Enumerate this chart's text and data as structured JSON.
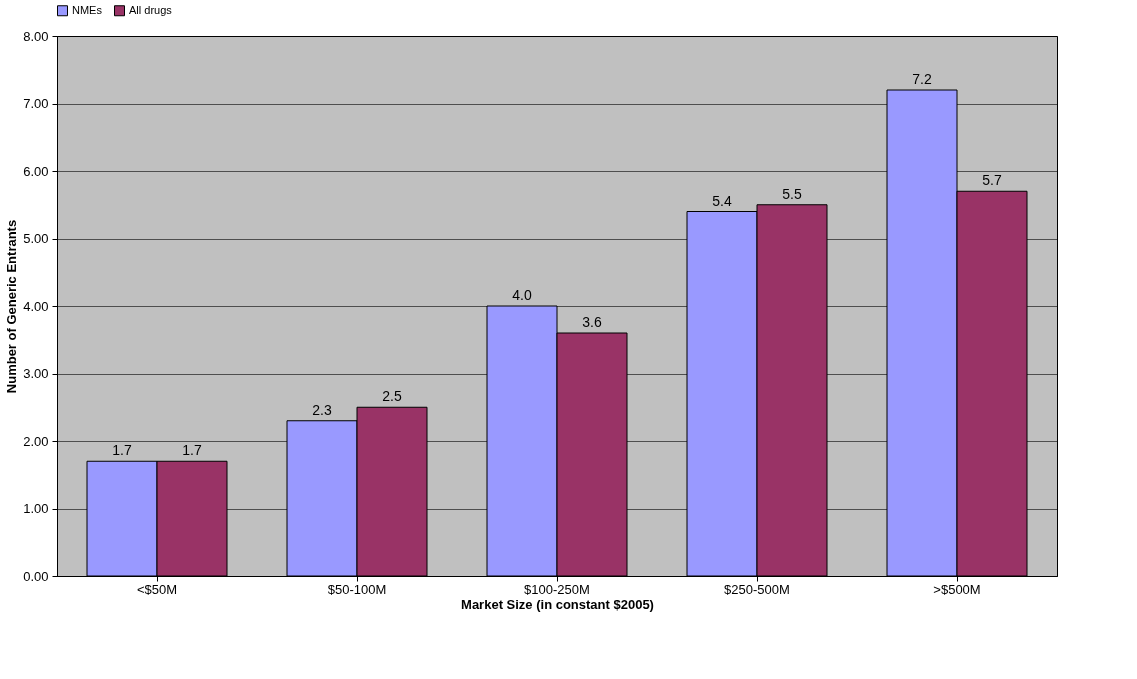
{
  "chart_data": {
    "type": "bar",
    "xlabel": "Market Size (in constant $2005)",
    "ylabel": "Number of Generic Entrants",
    "categories": [
      "<$50M",
      "$50-100M",
      "$100-250M",
      "$250-500M",
      ">$500M"
    ],
    "series": [
      {
        "name": "NMEs",
        "color": "#9999ff",
        "values": [
          1.7,
          2.3,
          4.0,
          5.4,
          7.2
        ],
        "value_labels": [
          "1.7",
          "2.3",
          "4.0",
          "5.4",
          "7.2"
        ]
      },
      {
        "name": "All drugs",
        "color": "#993366",
        "values": [
          1.7,
          2.5,
          3.6,
          5.5,
          5.7
        ],
        "value_labels": [
          "1.7",
          "2.5",
          "3.6",
          "5.5",
          "5.7"
        ]
      }
    ],
    "ylim": [
      0,
      8
    ],
    "yticks": [
      {
        "value": 0,
        "label": "0.00"
      },
      {
        "value": 1,
        "label": "1.00"
      },
      {
        "value": 2,
        "label": "2.00"
      },
      {
        "value": 3,
        "label": "3.00"
      },
      {
        "value": 4,
        "label": "4.00"
      },
      {
        "value": 5,
        "label": "5.00"
      },
      {
        "value": 6,
        "label": "6.00"
      },
      {
        "value": 7,
        "label": "7.00"
      },
      {
        "value": 8,
        "label": "8.00"
      }
    ],
    "grid": "y",
    "legend": "top"
  }
}
